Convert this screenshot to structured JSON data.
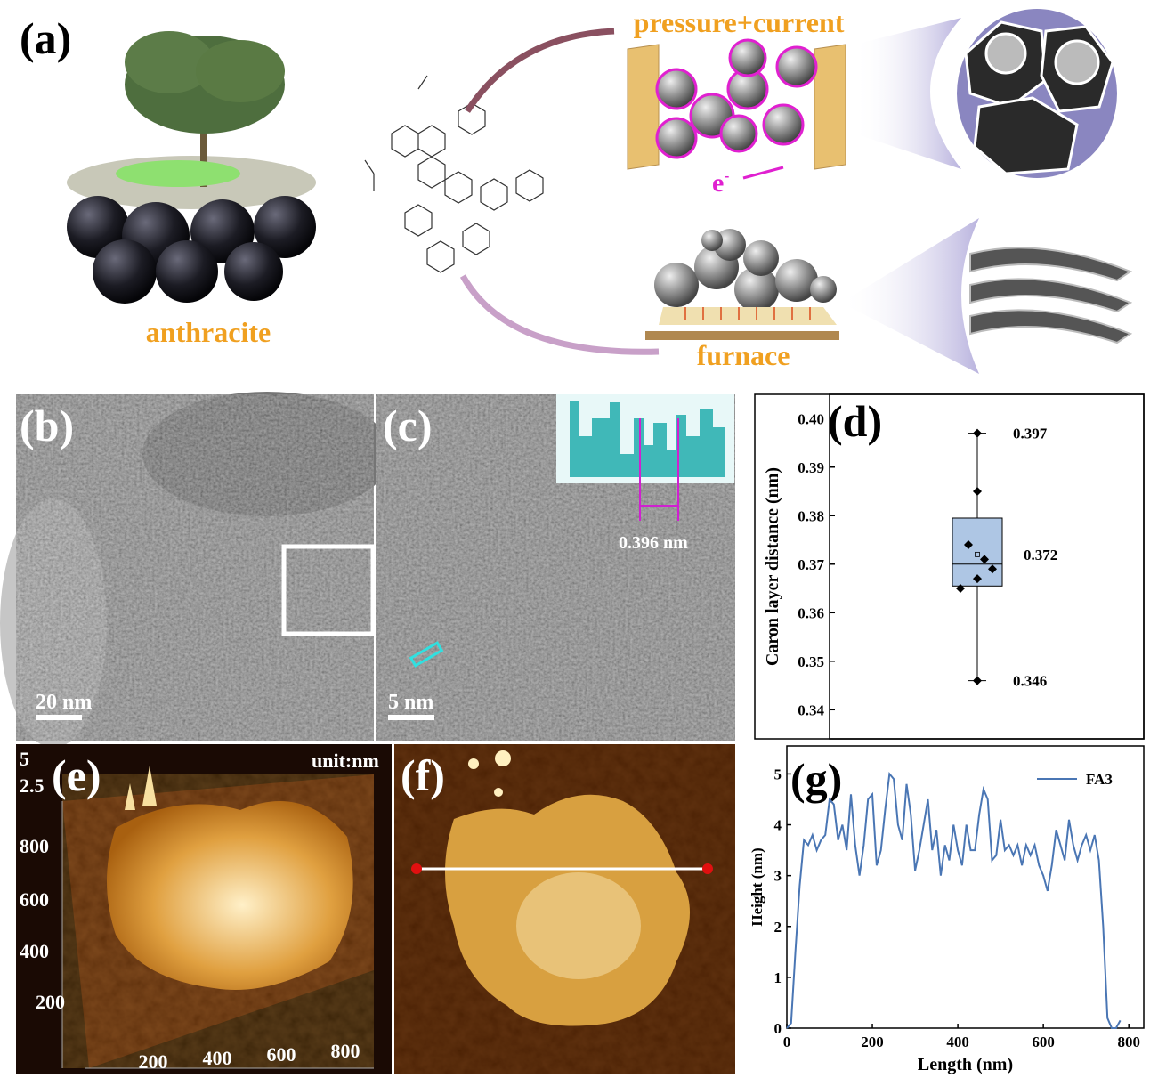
{
  "panel_a": {
    "label": "(a)",
    "anthracite": "anthracite",
    "pressure_current": "pressure+current",
    "electron": "e",
    "electron_sup": "-",
    "furnace": "furnace"
  },
  "panel_b": {
    "label": "(b)",
    "scale_bar": "20 nm"
  },
  "panel_c": {
    "label": "(c)",
    "scale_bar": "5 nm",
    "spacing": "0.396 nm"
  },
  "panel_e": {
    "label": "(e)",
    "unit": "unit:nm",
    "z_ticks": [
      5,
      2.5
    ],
    "y_ticks": [
      800,
      600,
      400,
      200
    ],
    "x_ticks": [
      200,
      400,
      600,
      800
    ]
  },
  "panel_f": {
    "label": "(f)"
  },
  "chart_data": [
    {
      "type": "box",
      "label": "(d)",
      "y_label": "Caron layer distance (nm)",
      "ylim": [
        0.334,
        0.405
      ],
      "yticks": [
        0.34,
        0.35,
        0.36,
        0.37,
        0.38,
        0.39,
        {
          "value": 0.4,
          "label": "0.40"
        }
      ],
      "box": {
        "whisker_low": 0.346,
        "q1": 0.3655,
        "median": 0.37,
        "mean": 0.372,
        "q3": 0.3795,
        "whisker_high": 0.397
      },
      "points": [
        0.397,
        0.385,
        0.374,
        0.371,
        0.369,
        0.367,
        0.365,
        0.346
      ],
      "annotations": [
        0.397,
        0.372,
        0.346
      ],
      "color": "#aec6e4"
    },
    {
      "type": "line",
      "label": "(g)",
      "x_label": "Length (nm)",
      "y_label": "Height (nm)",
      "xlim": [
        0,
        835
      ],
      "ylim": [
        0,
        5.55
      ],
      "xticks": [
        0,
        200,
        400,
        600,
        800
      ],
      "yticks": [
        0,
        1,
        2,
        3,
        4,
        5
      ],
      "legend": "upper right",
      "x": [
        0,
        10,
        20,
        30,
        40,
        50,
        60,
        70,
        80,
        90,
        100,
        110,
        120,
        130,
        140,
        150,
        160,
        170,
        180,
        190,
        200,
        210,
        220,
        230,
        240,
        250,
        260,
        270,
        280,
        290,
        300,
        310,
        320,
        330,
        340,
        350,
        360,
        370,
        380,
        390,
        400,
        410,
        420,
        430,
        440,
        450,
        460,
        470,
        480,
        490,
        500,
        510,
        520,
        530,
        540,
        550,
        560,
        570,
        580,
        590,
        600,
        610,
        620,
        630,
        640,
        650,
        660,
        670,
        680,
        690,
        700,
        710,
        720,
        730,
        740,
        750,
        760,
        770,
        780
      ],
      "series": [
        {
          "name": "FA3",
          "color": "#4a76b4",
          "values": [
            0,
            0.1,
            1.5,
            2.8,
            3.7,
            3.6,
            3.8,
            3.5,
            3.7,
            3.8,
            4.5,
            4.4,
            3.7,
            4.0,
            3.5,
            4.6,
            3.6,
            3.0,
            3.6,
            4.5,
            4.6,
            3.2,
            3.5,
            4.3,
            5.0,
            4.9,
            4.0,
            3.7,
            4.8,
            4.2,
            3.1,
            3.5,
            4.0,
            4.5,
            3.5,
            3.9,
            3.0,
            3.6,
            3.3,
            4.0,
            3.5,
            3.2,
            4.0,
            3.5,
            3.5,
            4.2,
            4.7,
            4.5,
            3.3,
            3.4,
            4.1,
            3.5,
            3.6,
            3.4,
            3.6,
            3.2,
            3.6,
            3.4,
            3.6,
            3.2,
            3.0,
            2.7,
            3.2,
            3.9,
            3.6,
            3.3,
            4.1,
            3.6,
            3.3,
            3.6,
            3.8,
            3.5,
            3.8,
            3.3,
            2.0,
            0.2,
            0,
            0,
            0.15
          ]
        }
      ]
    }
  ]
}
